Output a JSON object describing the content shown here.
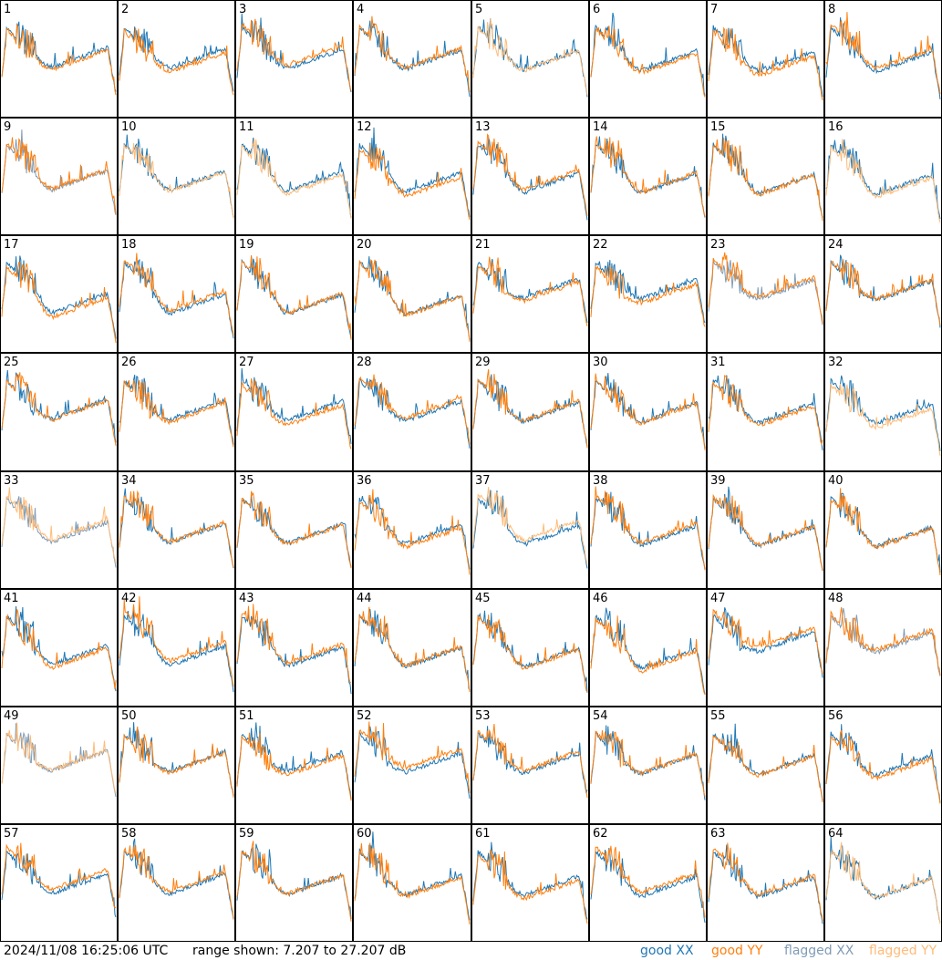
{
  "chart_data": {
    "type": "line",
    "panel_count": 64,
    "grid": {
      "rows": 8,
      "cols": 8
    },
    "panel_labels": [
      "1",
      "2",
      "3",
      "4",
      "5",
      "6",
      "7",
      "8",
      "9",
      "10",
      "11",
      "12",
      "13",
      "14",
      "15",
      "16",
      "17",
      "18",
      "19",
      "20",
      "21",
      "22",
      "23",
      "24",
      "25",
      "26",
      "27",
      "28",
      "29",
      "30",
      "31",
      "32",
      "33",
      "34",
      "35",
      "36",
      "37",
      "38",
      "39",
      "40",
      "41",
      "42",
      "43",
      "44",
      "45",
      "46",
      "47",
      "48",
      "49",
      "50",
      "51",
      "52",
      "53",
      "54",
      "55",
      "56",
      "57",
      "58",
      "59",
      "60",
      "61",
      "62",
      "63",
      "64"
    ],
    "ylim": [
      7.207,
      27.207
    ],
    "yunit": "dB",
    "series": [
      {
        "name": "good XX",
        "color": "#1f77b4"
      },
      {
        "name": "good YY",
        "color": "#ff7f0e"
      },
      {
        "name": "flagged XX",
        "color": "#7f9bb5"
      },
      {
        "name": "flagged YY",
        "color": "#ffbb78"
      }
    ],
    "tiles": [
      {
        "xx": "good",
        "yy": "good"
      },
      {
        "xx": "good",
        "yy": "good"
      },
      {
        "xx": "good",
        "yy": "good"
      },
      {
        "xx": "good",
        "yy": "good"
      },
      {
        "xx": "good",
        "yy": "flagged"
      },
      {
        "xx": "good",
        "yy": "good"
      },
      {
        "xx": "good",
        "yy": "good"
      },
      {
        "xx": "good",
        "yy": "good"
      },
      {
        "xx": "flagged",
        "yy": "good"
      },
      {
        "xx": "good",
        "yy": "flagged"
      },
      {
        "xx": "good",
        "yy": "flagged"
      },
      {
        "xx": "good",
        "yy": "good"
      },
      {
        "xx": "good",
        "yy": "good"
      },
      {
        "xx": "good",
        "yy": "good"
      },
      {
        "xx": "good",
        "yy": "good"
      },
      {
        "xx": "good",
        "yy": "flagged"
      },
      {
        "xx": "good",
        "yy": "good"
      },
      {
        "xx": "good",
        "yy": "good"
      },
      {
        "xx": "good",
        "yy": "good"
      },
      {
        "xx": "good",
        "yy": "good"
      },
      {
        "xx": "good",
        "yy": "good"
      },
      {
        "xx": "good",
        "yy": "good"
      },
      {
        "xx": "flagged",
        "yy": "good"
      },
      {
        "xx": "good",
        "yy": "good"
      },
      {
        "xx": "good",
        "yy": "good"
      },
      {
        "xx": "good",
        "yy": "good"
      },
      {
        "xx": "good",
        "yy": "good"
      },
      {
        "xx": "good",
        "yy": "good"
      },
      {
        "xx": "good",
        "yy": "good"
      },
      {
        "xx": "good",
        "yy": "good"
      },
      {
        "xx": "good",
        "yy": "good"
      },
      {
        "xx": "good",
        "yy": "flagged"
      },
      {
        "xx": "flagged",
        "yy": "flagged"
      },
      {
        "xx": "good",
        "yy": "good"
      },
      {
        "xx": "good",
        "yy": "good"
      },
      {
        "xx": "good",
        "yy": "good"
      },
      {
        "xx": "good",
        "yy": "flagged"
      },
      {
        "xx": "good",
        "yy": "good"
      },
      {
        "xx": "good",
        "yy": "good"
      },
      {
        "xx": "good",
        "yy": "good"
      },
      {
        "xx": "good",
        "yy": "good"
      },
      {
        "xx": "good",
        "yy": "good"
      },
      {
        "xx": "good",
        "yy": "good"
      },
      {
        "xx": "good",
        "yy": "good"
      },
      {
        "xx": "good",
        "yy": "good"
      },
      {
        "xx": "good",
        "yy": "good"
      },
      {
        "xx": "good",
        "yy": "good"
      },
      {
        "xx": "flagged",
        "yy": "good"
      },
      {
        "xx": "flagged",
        "yy": "flagged"
      },
      {
        "xx": "good",
        "yy": "good"
      },
      {
        "xx": "good",
        "yy": "good"
      },
      {
        "xx": "good",
        "yy": "good"
      },
      {
        "xx": "good",
        "yy": "good"
      },
      {
        "xx": "good",
        "yy": "good"
      },
      {
        "xx": "good",
        "yy": "good"
      },
      {
        "xx": "good",
        "yy": "good"
      },
      {
        "xx": "good",
        "yy": "good"
      },
      {
        "xx": "good",
        "yy": "good"
      },
      {
        "xx": "good",
        "yy": "good"
      },
      {
        "xx": "good",
        "yy": "good"
      },
      {
        "xx": "good",
        "yy": "good"
      },
      {
        "xx": "good",
        "yy": "good"
      },
      {
        "xx": "good",
        "yy": "good"
      },
      {
        "xx": "good",
        "yy": "flagged"
      }
    ]
  },
  "footer": {
    "timestamp": "2024/11/08 16:25:06 UTC",
    "range_text": "range shown: 7.207 to 27.207 dB",
    "legend": {
      "good_xx": "good XX",
      "good_yy": "good YY",
      "flagged_xx": "flagged XX",
      "flagged_yy": "flagged YY"
    }
  }
}
